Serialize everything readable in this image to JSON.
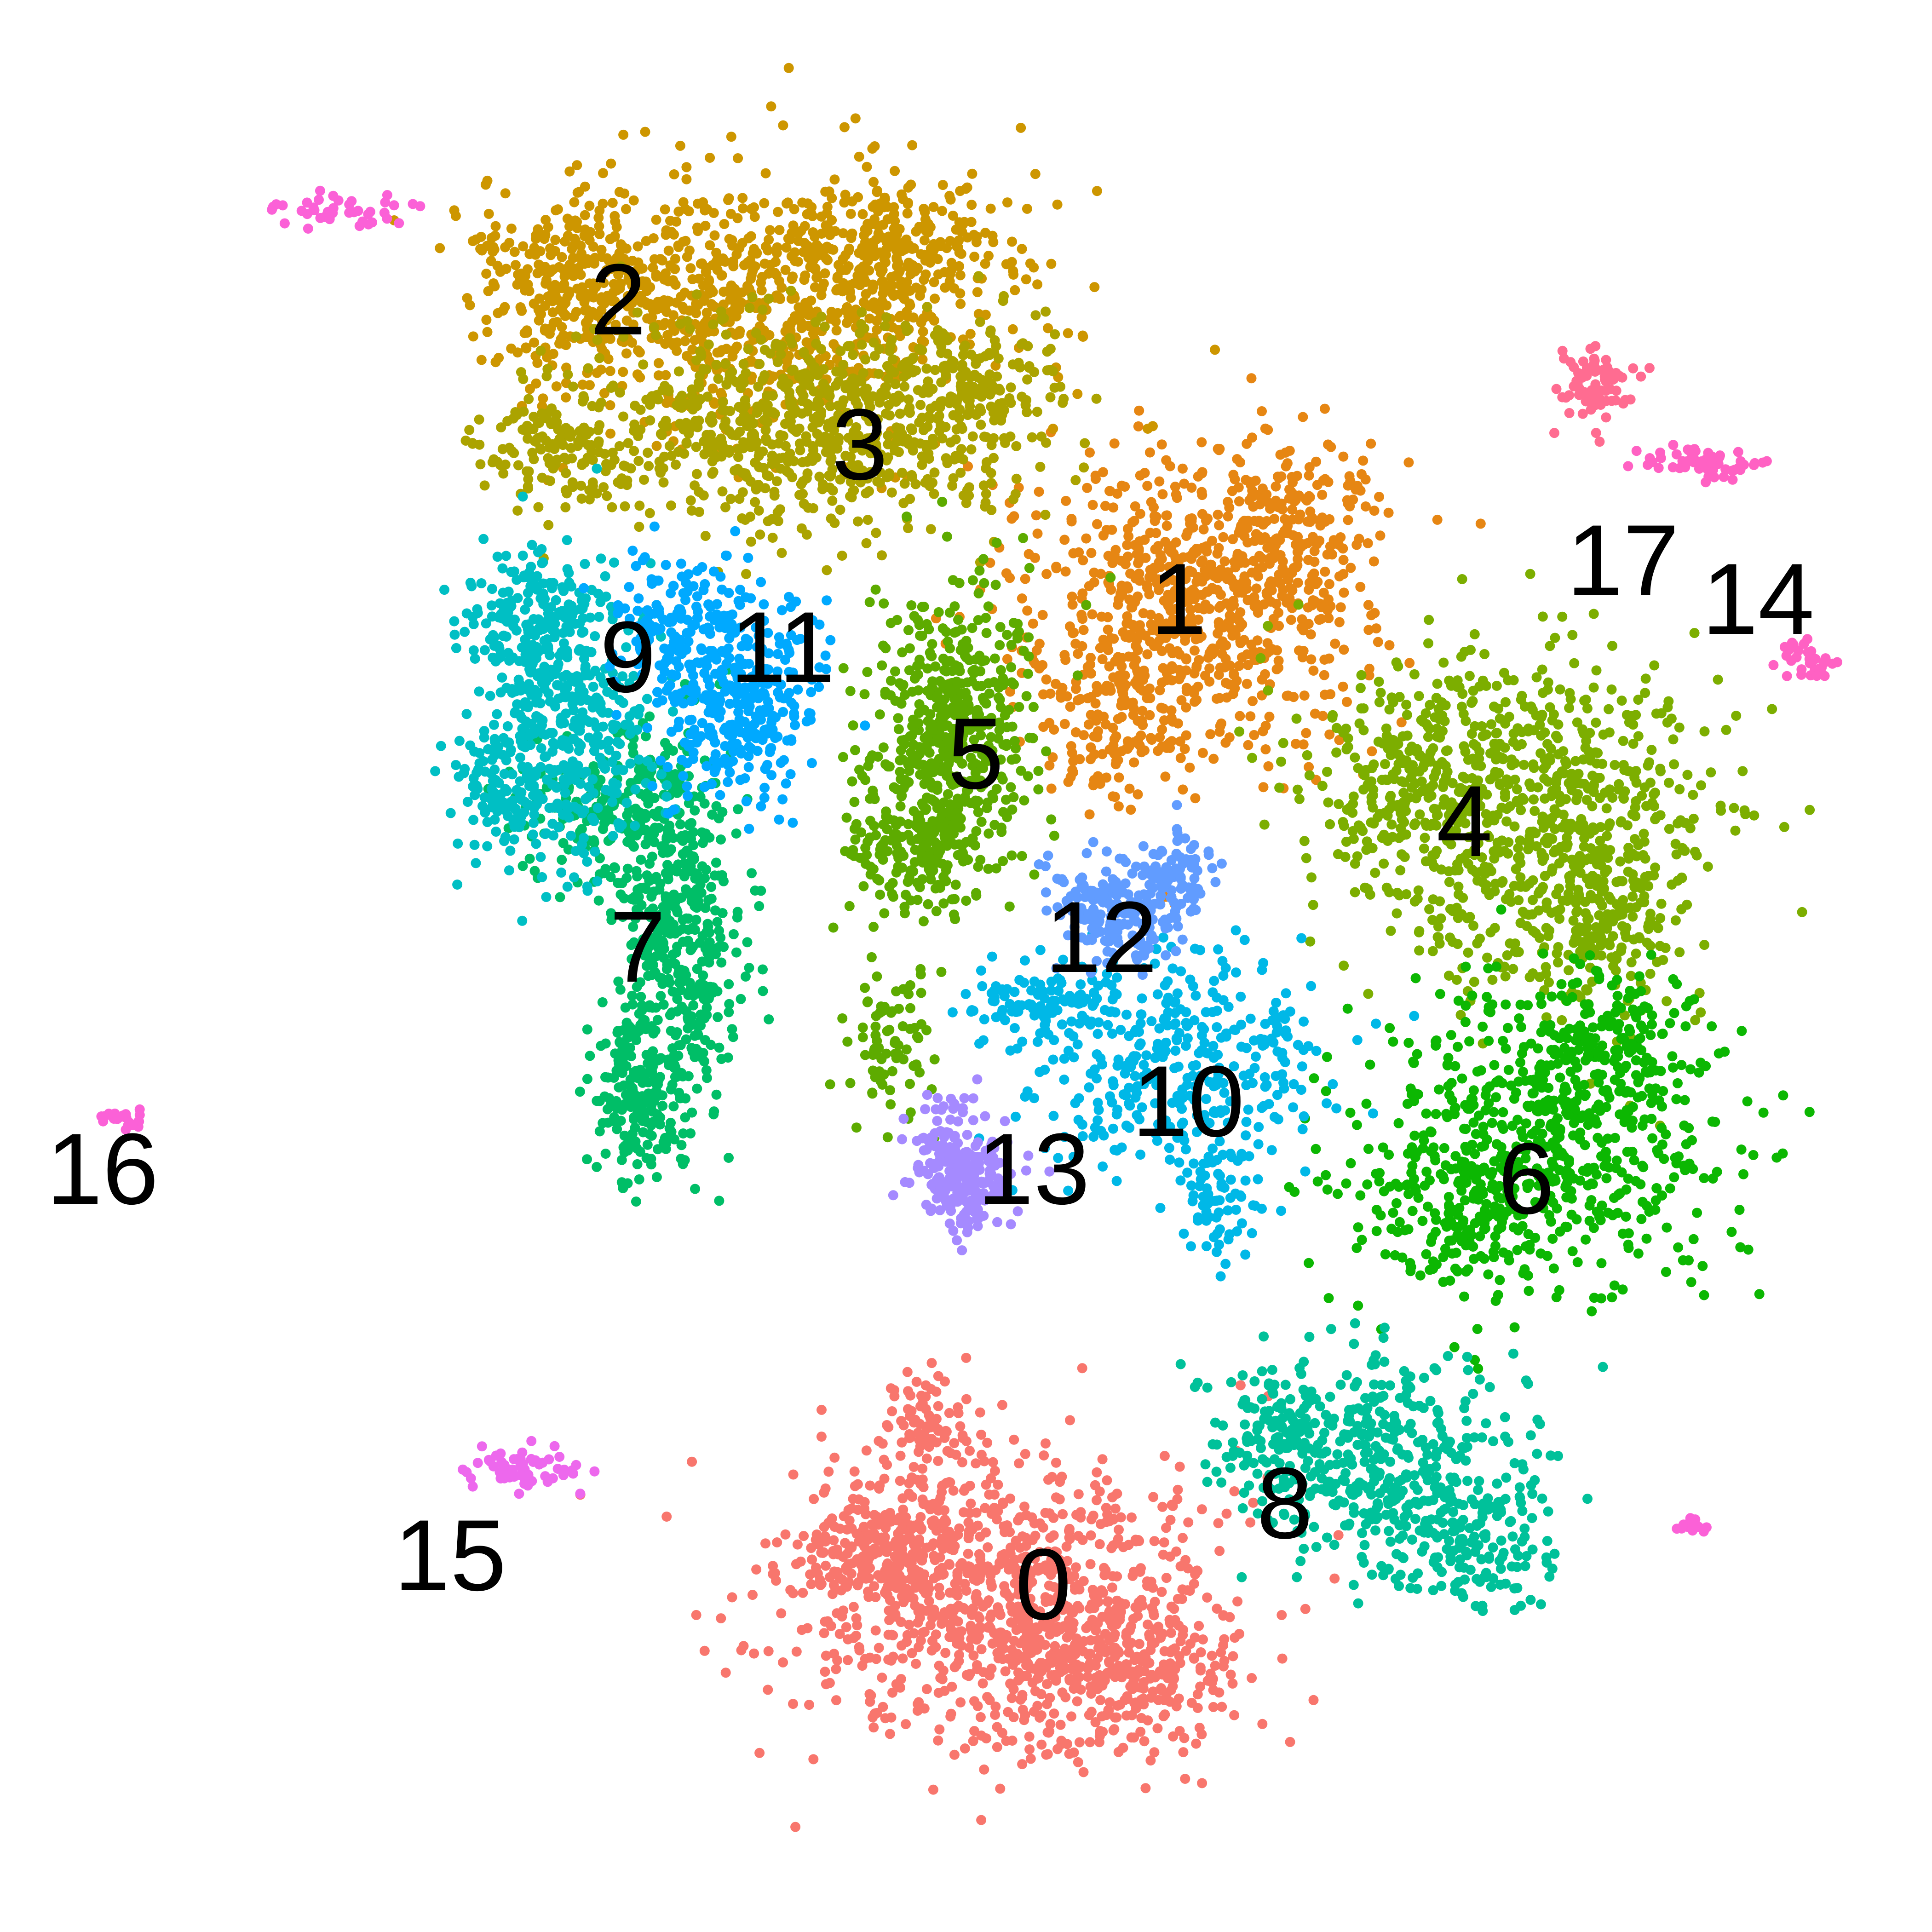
{
  "chart_data": {
    "type": "scatter",
    "title": "",
    "xlabel": "",
    "ylabel": "",
    "axes_visible": false,
    "grid": false,
    "legend": "none",
    "xlim": [
      0,
      100
    ],
    "ylim": [
      0,
      100
    ],
    "clusters": [
      {
        "label": "0",
        "color": "#F8766D",
        "label_pos": [
          54.0,
          18.0
        ]
      },
      {
        "label": "1",
        "color": "#E68613",
        "label_pos": [
          61.0,
          69.0
        ]
      },
      {
        "label": "2",
        "color": "#CD9600",
        "label_pos": [
          32.0,
          84.5
        ]
      },
      {
        "label": "3",
        "color": "#ABA300",
        "label_pos": [
          44.5,
          77.0
        ]
      },
      {
        "label": "4",
        "color": "#7CAE00",
        "label_pos": [
          75.8,
          57.5
        ]
      },
      {
        "label": "5",
        "color": "#5DAB00",
        "label_pos": [
          50.5,
          61.0
        ]
      },
      {
        "label": "6",
        "color": "#0CB702",
        "label_pos": [
          79.0,
          39.0
        ]
      },
      {
        "label": "7",
        "color": "#00BE67",
        "label_pos": [
          33.0,
          51.0
        ]
      },
      {
        "label": "8",
        "color": "#00C19A",
        "label_pos": [
          66.5,
          22.2
        ]
      },
      {
        "label": "9",
        "color": "#00BFC4",
        "label_pos": [
          32.5,
          66.0
        ]
      },
      {
        "label": "10",
        "color": "#00B8E7",
        "label_pos": [
          61.5,
          43.0
        ]
      },
      {
        "label": "11",
        "color": "#00A9FF",
        "label_pos": [
          40.5,
          66.5
        ]
      },
      {
        "label": "12",
        "color": "#619CFF",
        "label_pos": [
          57.0,
          51.5
        ]
      },
      {
        "label": "13",
        "color": "#A58AFF",
        "label_pos": [
          53.5,
          39.5
        ]
      },
      {
        "label": "14",
        "color": "#FF61C3",
        "label_pos": [
          91.0,
          69.0
        ]
      },
      {
        "label": "15",
        "color": "#ED68ED",
        "label_pos": [
          23.3,
          19.5
        ]
      },
      {
        "label": "16",
        "color": "#FB61D7",
        "label_pos": [
          5.3,
          39.5
        ]
      },
      {
        "label": "17",
        "color": "#FF6C91",
        "label_pos": [
          84.0,
          71.0
        ]
      }
    ]
  }
}
